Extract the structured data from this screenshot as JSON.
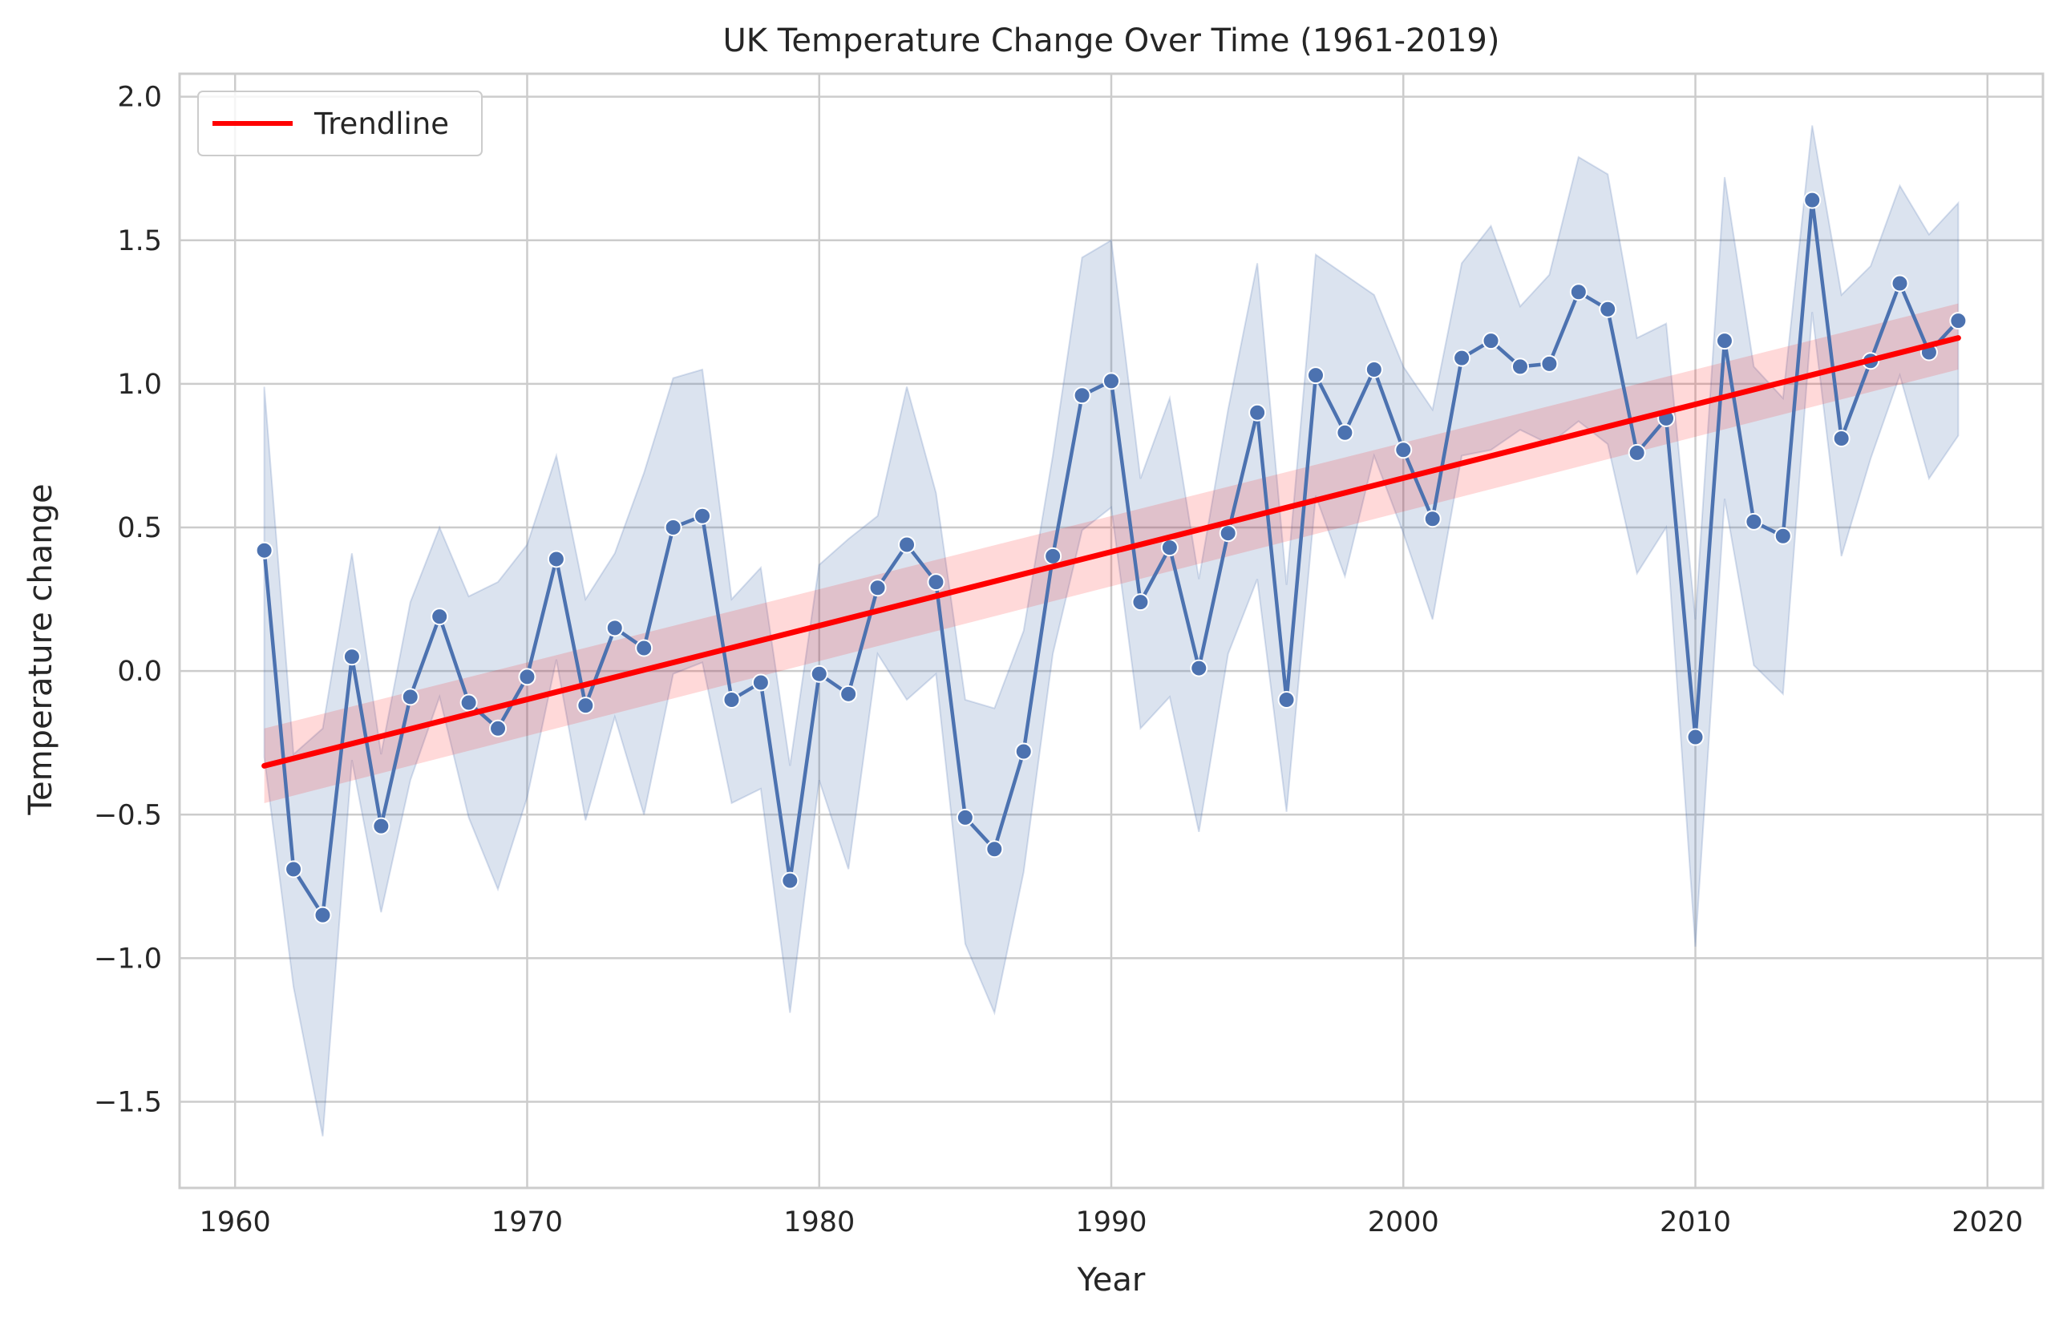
{
  "chart_data": {
    "type": "line",
    "title": "UK Temperature Change Over Time (1961-2019)",
    "xlabel": "Year",
    "ylabel": "Temperature change",
    "xlim": [
      1958.1,
      2021.9
    ],
    "ylim": [
      -1.8,
      2.08
    ],
    "xticks": [
      1960,
      1970,
      1980,
      1990,
      2000,
      2010,
      2020
    ],
    "yticks": [
      -1.5,
      -1.0,
      -0.5,
      0.0,
      0.5,
      1.0,
      1.5,
      2.0
    ],
    "xtick_labels": [
      "1960",
      "1970",
      "1980",
      "1990",
      "2000",
      "2010",
      "2020"
    ],
    "ytick_labels": [
      "−1.5",
      "−1.0",
      "−0.5",
      "0.0",
      "0.5",
      "1.0",
      "1.5",
      "2.0"
    ],
    "grid": true,
    "legend": {
      "position": "upper-left",
      "entries": [
        "Trendline"
      ]
    },
    "colors": {
      "series": "#4c72b0",
      "band": "#4c72b0",
      "trend": "#ff0000",
      "grid": "#cccccc"
    },
    "series": [
      {
        "marker": "circle",
        "x": [
          1961,
          1962,
          1963,
          1964,
          1965,
          1966,
          1967,
          1968,
          1969,
          1970,
          1971,
          1972,
          1973,
          1974,
          1975,
          1976,
          1977,
          1978,
          1979,
          1980,
          1981,
          1982,
          1983,
          1984,
          1985,
          1986,
          1987,
          1988,
          1989,
          1990,
          1991,
          1992,
          1993,
          1994,
          1995,
          1996,
          1997,
          1998,
          1999,
          2000,
          2001,
          2002,
          2003,
          2004,
          2005,
          2006,
          2007,
          2008,
          2009,
          2010,
          2011,
          2012,
          2013,
          2014,
          2015,
          2016,
          2017,
          2018,
          2019
        ],
        "y": [
          0.42,
          -0.69,
          -0.85,
          0.05,
          -0.54,
          -0.09,
          0.19,
          -0.11,
          -0.2,
          -0.02,
          0.39,
          -0.12,
          0.15,
          0.08,
          0.5,
          0.54,
          -0.1,
          -0.04,
          -0.73,
          -0.01,
          -0.08,
          0.29,
          0.44,
          0.31,
          -0.51,
          -0.62,
          -0.28,
          0.4,
          0.96,
          1.01,
          0.24,
          0.43,
          0.01,
          0.48,
          0.9,
          -0.1,
          1.03,
          0.83,
          1.05,
          0.77,
          0.53,
          1.09,
          1.15,
          1.06,
          1.07,
          1.32,
          1.26,
          0.76,
          0.88,
          -0.23,
          1.15,
          0.52,
          0.47,
          1.64,
          0.81,
          1.08,
          1.35,
          1.11,
          1.22
        ],
        "ci_upper": [
          0.99,
          -0.29,
          -0.2,
          0.41,
          -0.29,
          0.24,
          0.5,
          0.26,
          0.31,
          0.44,
          0.75,
          0.25,
          0.41,
          0.69,
          1.02,
          1.05,
          0.25,
          0.36,
          -0.33,
          0.37,
          0.46,
          0.54,
          0.99,
          0.62,
          -0.1,
          -0.13,
          0.14,
          0.75,
          1.44,
          1.5,
          0.67,
          0.95,
          0.32,
          0.91,
          1.42,
          0.3,
          1.45,
          1.38,
          1.31,
          1.06,
          0.91,
          1.42,
          1.55,
          1.27,
          1.38,
          1.79,
          1.73,
          1.16,
          1.21,
          0.18,
          1.72,
          1.06,
          0.95,
          1.9,
          1.31,
          1.41,
          1.69,
          1.52,
          1.63
        ],
        "ci_lower": [
          -0.3,
          -1.1,
          -1.62,
          -0.31,
          -0.84,
          -0.38,
          -0.09,
          -0.51,
          -0.76,
          -0.44,
          0.04,
          -0.52,
          -0.16,
          -0.5,
          -0.01,
          0.03,
          -0.46,
          -0.41,
          -1.19,
          -0.38,
          -0.69,
          0.06,
          -0.1,
          -0.01,
          -0.95,
          -1.19,
          -0.7,
          0.06,
          0.49,
          0.57,
          -0.2,
          -0.09,
          -0.56,
          0.06,
          0.32,
          -0.49,
          0.61,
          0.33,
          0.75,
          0.48,
          0.18,
          0.75,
          0.77,
          0.84,
          0.79,
          0.87,
          0.79,
          0.34,
          0.5,
          -0.96,
          0.6,
          0.02,
          -0.08,
          1.25,
          0.4,
          0.74,
          1.03,
          0.67,
          0.82
        ]
      }
    ],
    "trendline": {
      "name": "Trendline",
      "x": [
        1961,
        2019
      ],
      "y": [
        -0.33,
        1.16
      ],
      "ci_lower": [
        -0.46,
        1.05
      ],
      "ci_upper": [
        -0.2,
        1.28
      ]
    }
  }
}
